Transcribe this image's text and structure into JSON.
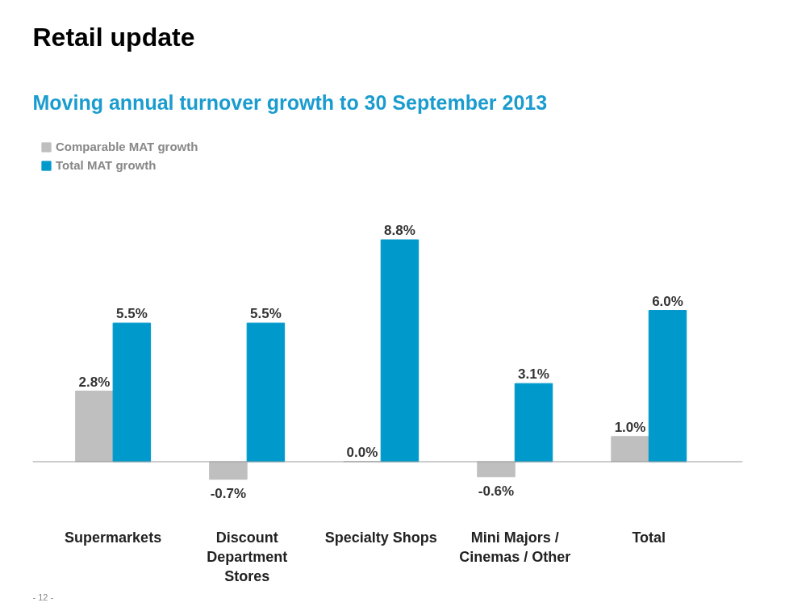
{
  "chart_data": {
    "type": "bar",
    "title": "Retail update",
    "subtitle": "Moving annual turnover growth to 30 September 2013",
    "categories": [
      "Supermarkets",
      "Discount Department Stores",
      "Specialty Shops",
      "Mini Majors / Cinemas / Other",
      "Total"
    ],
    "series": [
      {
        "name": "Comparable MAT growth",
        "color": "#bfbfbf",
        "values": [
          2.8,
          -0.7,
          0.0,
          -0.6,
          1.0
        ],
        "value_labels": [
          "2.8%",
          "-0.7%",
          "0.0%",
          "-0.6%",
          "1.0%"
        ]
      },
      {
        "name": "Total MAT growth",
        "color": "#0099cc",
        "values": [
          5.5,
          5.5,
          8.8,
          3.1,
          6.0
        ],
        "value_labels": [
          "5.5%",
          "5.5%",
          "8.8%",
          "3.1%",
          "6.0%"
        ]
      }
    ],
    "legend": "top left",
    "grid": false,
    "annotations": [
      "- 12 -"
    ]
  }
}
